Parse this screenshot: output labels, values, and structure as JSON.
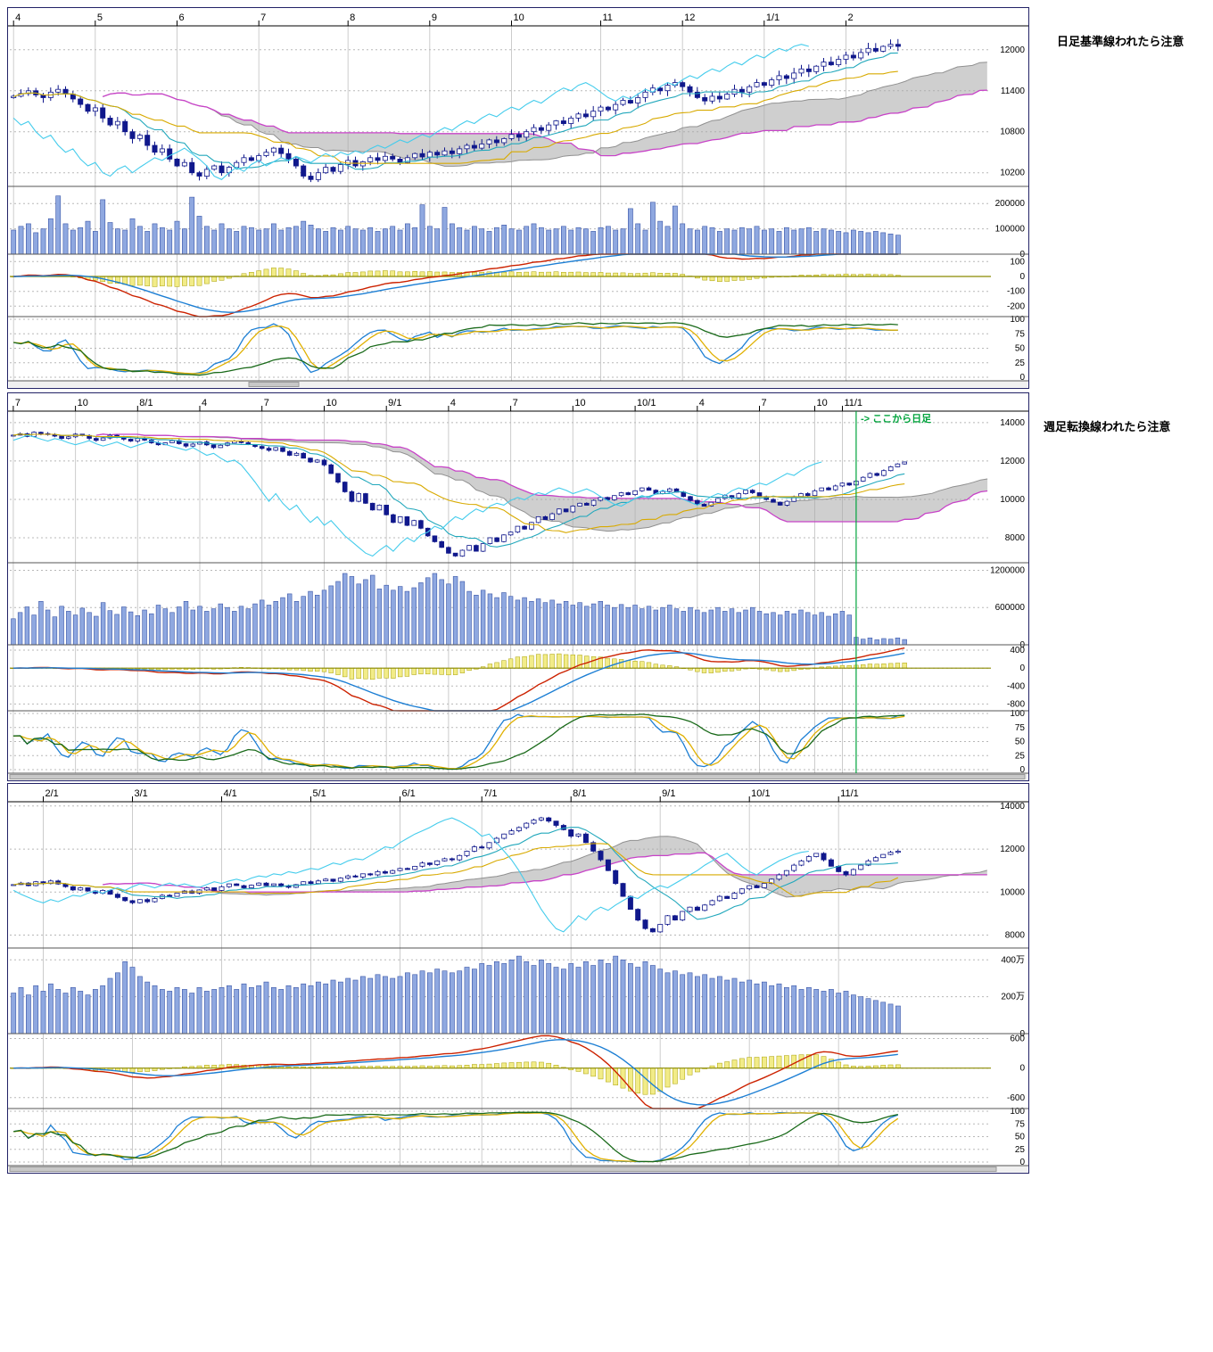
{
  "annotations": {
    "daily_note": "日足基準線われたら注意",
    "weekly_note": "週足転換線われたら注意"
  },
  "colors": {
    "candle": "#10188c",
    "candle_up_fill": "#ffffff",
    "volume_fill": "#8fa8e0",
    "volume_edge": "#3a56a8",
    "macd_line": "#cc2200",
    "signal_line": "#1d7fd4",
    "hist_fill": "#f2ec88",
    "hist_edge": "#a8a000",
    "zero_line": "#8a8a00",
    "stoch_k": "#1d7fd4",
    "stoch_d": "#e0b000",
    "stoch_slow": "#1a6a1a",
    "tenkan": "#22a8bc",
    "chikou": "#44ccec",
    "kijun": "#d8aa00",
    "span_a": "#909090",
    "span_b": "#c843c8",
    "cloud": "#a8a8a8",
    "grid": "#cccccc",
    "divider": "#00a33c"
  },
  "chart_data": [
    {
      "type": "candlestick",
      "id": "daily",
      "x_labels": [
        {
          "label": "4",
          "i": 0
        },
        {
          "label": "5",
          "i": 11
        },
        {
          "label": "6",
          "i": 22
        },
        {
          "label": "7",
          "i": 33
        },
        {
          "label": "8",
          "i": 45
        },
        {
          "label": "9",
          "i": 56
        },
        {
          "label": "10",
          "i": 67
        },
        {
          "label": "11",
          "i": 79
        },
        {
          "label": "12",
          "i": 90
        },
        {
          "label": "1/1",
          "i": 101
        },
        {
          "label": "2",
          "i": 112
        }
      ],
      "price_ticks": [
        12000,
        11400,
        10800,
        10200
      ],
      "price_range": [
        10000,
        12350
      ],
      "volume_ticks": [
        200000,
        100000,
        0
      ],
      "volume_labels": [
        "200000",
        "100000",
        "0"
      ],
      "volume_max": 250000,
      "macd_ticks": [
        100,
        0,
        -100,
        -200
      ],
      "macd_range": [
        -270,
        150
      ],
      "stoch_ticks": [
        100,
        75,
        50,
        25,
        0
      ],
      "closes": [
        11320,
        11360,
        11400,
        11340,
        11300,
        11380,
        11420,
        11350,
        11280,
        11200,
        11100,
        11150,
        11000,
        10900,
        10950,
        10800,
        10700,
        10750,
        10600,
        10500,
        10550,
        10400,
        10300,
        10350,
        10200,
        10150,
        10250,
        10300,
        10200,
        10280,
        10350,
        10420,
        10380,
        10450,
        10500,
        10560,
        10480,
        10400,
        10300,
        10150,
        10100,
        10200,
        10280,
        10220,
        10320,
        10380,
        10300,
        10360,
        10420,
        10380,
        10440,
        10400,
        10350,
        10420,
        10480,
        10430,
        10500,
        10460,
        10520,
        10480,
        10550,
        10600,
        10560,
        10620,
        10680,
        10640,
        10700,
        10760,
        10720,
        10800,
        10860,
        10820,
        10900,
        10960,
        10920,
        11000,
        11060,
        11020,
        11100,
        11160,
        11120,
        11200,
        11260,
        11220,
        11300,
        11380,
        11440,
        11400,
        11480,
        11520,
        11460,
        11380,
        11300,
        11250,
        11320,
        11280,
        11350,
        11420,
        11380,
        11460,
        11520,
        11480,
        11560,
        11620,
        11580,
        11660,
        11720,
        11680,
        11760,
        11820,
        11780,
        11860,
        11920,
        11880,
        11960,
        12020,
        11980,
        12050,
        12080,
        12050
      ],
      "volumes": [
        95000,
        110000,
        120000,
        85000,
        100000,
        140000,
        230000,
        120000,
        95000,
        105000,
        130000,
        90000,
        215000,
        125000,
        100000,
        95000,
        140000,
        110000,
        90000,
        120000,
        105000,
        95000,
        130000,
        100000,
        225000,
        150000,
        110000,
        95000,
        120000,
        100000,
        90000,
        110000,
        105000,
        95000,
        100000,
        120000,
        95000,
        105000,
        110000,
        130000,
        115000,
        100000,
        90000,
        105000,
        95000,
        110000,
        100000,
        95000,
        105000,
        90000,
        100000,
        110000,
        95000,
        120000,
        105000,
        195000,
        110000,
        100000,
        185000,
        120000,
        105000,
        95000,
        110000,
        100000,
        90000,
        105000,
        115000,
        100000,
        95000,
        110000,
        120000,
        105000,
        95000,
        100000,
        110000,
        95000,
        105000,
        100000,
        90000,
        105000,
        110000,
        95000,
        100000,
        180000,
        120000,
        95000,
        205000,
        130000,
        110000,
        190000,
        120000,
        100000,
        95000,
        110000,
        105000,
        90000,
        100000,
        95000,
        105000,
        100000,
        110000,
        95000,
        100000,
        90000,
        105000,
        95000,
        100000,
        105000,
        90000,
        100000,
        95000,
        90000,
        85000,
        95000,
        90000,
        85000,
        90000,
        85000,
        80000,
        75000
      ]
    },
    {
      "type": "candlestick",
      "id": "weekly",
      "x_labels": [
        {
          "label": "7",
          "i": 0
        },
        {
          "label": "10",
          "i": 9
        },
        {
          "label": "8/1",
          "i": 18
        },
        {
          "label": "4",
          "i": 27
        },
        {
          "label": "7",
          "i": 36
        },
        {
          "label": "10",
          "i": 45
        },
        {
          "label": "9/1",
          "i": 54
        },
        {
          "label": "4",
          "i": 63
        },
        {
          "label": "7",
          "i": 72
        },
        {
          "label": "10",
          "i": 81
        },
        {
          "label": "10/1",
          "i": 90
        },
        {
          "label": "4",
          "i": 99
        },
        {
          "label": "7",
          "i": 108
        },
        {
          "label": "10",
          "i": 116
        },
        {
          "label": "11/1",
          "i": 120
        }
      ],
      "price_ticks": [
        14000,
        12000,
        10000,
        8000
      ],
      "price_range": [
        6700,
        14600
      ],
      "volume_ticks": [
        1200000,
        600000,
        0
      ],
      "volume_labels": [
        "1200000",
        "600000",
        "0"
      ],
      "volume_max": 1250000,
      "macd_ticks": [
        400,
        0,
        -400,
        -800
      ],
      "macd_range": [
        -950,
        520
      ],
      "stoch_ticks": [
        100,
        75,
        50,
        25,
        0
      ],
      "divider": {
        "i": 122,
        "label": "-> ここから日足"
      },
      "closes": [
        13350,
        13420,
        13280,
        13500,
        13430,
        13380,
        13300,
        13180,
        13260,
        13400,
        13330,
        13180,
        13080,
        13200,
        13340,
        13260,
        13140,
        13040,
        13170,
        13090,
        12950,
        12850,
        12950,
        13060,
        12900,
        12780,
        12880,
        12990,
        12840,
        12700,
        12820,
        12940,
        13050,
        12960,
        12860,
        12760,
        12660,
        12560,
        12700,
        12500,
        12300,
        12400,
        12150,
        11950,
        12050,
        11800,
        11350,
        10900,
        10400,
        9900,
        10300,
        9800,
        9450,
        9700,
        9200,
        8800,
        9100,
        8650,
        8900,
        8500,
        8100,
        7800,
        7500,
        7200,
        7050,
        7350,
        7600,
        7300,
        7700,
        8000,
        7800,
        8150,
        8300,
        8600,
        8450,
        8800,
        9100,
        8950,
        9250,
        9500,
        9350,
        9650,
        9800,
        9700,
        9950,
        10100,
        9980,
        10200,
        10350,
        10250,
        10450,
        10600,
        10480,
        10300,
        10420,
        10550,
        10380,
        10150,
        9950,
        9750,
        9650,
        9850,
        10050,
        10200,
        10080,
        10300,
        10480,
        10350,
        10150,
        10000,
        9850,
        9700,
        9900,
        10150,
        10300,
        10200,
        10450,
        10600,
        10500,
        10700,
        10850,
        10750,
        10950,
        11150,
        11350,
        11250,
        11500,
        11700,
        11850,
        11950
      ],
      "volumes": [
        420000,
        520000,
        610000,
        480000,
        700000,
        560000,
        450000,
        620000,
        540000,
        480000,
        590000,
        520000,
        460000,
        680000,
        550000,
        490000,
        610000,
        530000,
        470000,
        560000,
        500000,
        640000,
        580000,
        520000,
        610000,
        700000,
        560000,
        620000,
        540000,
        580000,
        660000,
        600000,
        540000,
        620000,
        580000,
        660000,
        720000,
        640000,
        700000,
        760000,
        820000,
        700000,
        780000,
        860000,
        800000,
        880000,
        950000,
        1020000,
        1150000,
        1100000,
        980000,
        1050000,
        1120000,
        900000,
        960000,
        880000,
        940000,
        860000,
        920000,
        1000000,
        1080000,
        1150000,
        1050000,
        980000,
        1100000,
        1020000,
        860000,
        800000,
        880000,
        820000,
        760000,
        840000,
        780000,
        720000,
        760000,
        700000,
        740000,
        680000,
        720000,
        660000,
        700000,
        640000,
        680000,
        620000,
        660000,
        700000,
        640000,
        600000,
        650000,
        600000,
        640000,
        580000,
        620000,
        560000,
        600000,
        640000,
        580000,
        540000,
        600000,
        560000,
        520000,
        560000,
        600000,
        540000,
        580000,
        520000,
        560000,
        600000,
        540000,
        500000,
        520000,
        480000,
        540000,
        500000,
        560000,
        520000,
        480000,
        520000,
        460000,
        500000,
        540000,
        480000,
        120000,
        90000,
        110000,
        80000,
        100000,
        90000,
        110000,
        85000
      ]
    },
    {
      "type": "candlestick",
      "id": "longspan",
      "x_labels": [
        {
          "label": "2/1",
          "i": 4
        },
        {
          "label": "3/1",
          "i": 16
        },
        {
          "label": "4/1",
          "i": 28
        },
        {
          "label": "5/1",
          "i": 40
        },
        {
          "label": "6/1",
          "i": 52
        },
        {
          "label": "7/1",
          "i": 63
        },
        {
          "label": "8/1",
          "i": 75
        },
        {
          "label": "9/1",
          "i": 87
        },
        {
          "label": "10/1",
          "i": 99
        },
        {
          "label": "11/1",
          "i": 111
        }
      ],
      "price_ticks": [
        14000,
        12000,
        10000,
        8000
      ],
      "price_range": [
        7400,
        14200
      ],
      "volume_ticks": [
        400,
        200,
        0
      ],
      "volume_labels": [
        "400万",
        "200万",
        "0"
      ],
      "volume_max": 440,
      "macd_ticks": [
        600,
        0,
        -600
      ],
      "macd_range": [
        -820,
        700
      ],
      "stoch_ticks": [
        100,
        75,
        50,
        25,
        0
      ],
      "closes": [
        10350,
        10420,
        10300,
        10480,
        10400,
        10520,
        10380,
        10250,
        10100,
        10200,
        10050,
        9950,
        10080,
        9900,
        9750,
        9600,
        9500,
        9650,
        9550,
        9700,
        9850,
        9800,
        9950,
        10050,
        9950,
        10100,
        10200,
        10080,
        10250,
        10380,
        10300,
        10200,
        10320,
        10420,
        10300,
        10380,
        10280,
        10220,
        10350,
        10480,
        10400,
        10520,
        10600,
        10500,
        10650,
        10750,
        10700,
        10850,
        10800,
        10950,
        10880,
        11000,
        11100,
        11050,
        11200,
        11350,
        11280,
        11450,
        11550,
        11500,
        11700,
        11900,
        12100,
        12050,
        12300,
        12500,
        12700,
        12850,
        13000,
        13200,
        13350,
        13450,
        13300,
        13100,
        12900,
        12600,
        12700,
        12300,
        11900,
        11500,
        11000,
        10400,
        9800,
        9200,
        8700,
        8300,
        8150,
        8500,
        8900,
        8700,
        9100,
        9300,
        9150,
        9400,
        9600,
        9800,
        9700,
        9950,
        10150,
        10300,
        10200,
        10400,
        10600,
        10800,
        11000,
        11250,
        11450,
        11650,
        11800,
        11500,
        11200,
        10950,
        10800,
        11050,
        11250,
        11450,
        11600,
        11750,
        11850,
        11900
      ],
      "volumes": [
        220,
        250,
        210,
        260,
        230,
        270,
        240,
        220,
        250,
        230,
        210,
        240,
        260,
        300,
        330,
        390,
        360,
        310,
        280,
        260,
        240,
        230,
        250,
        240,
        220,
        250,
        230,
        240,
        250,
        260,
        240,
        270,
        250,
        260,
        280,
        250,
        240,
        260,
        250,
        270,
        260,
        280,
        270,
        290,
        280,
        300,
        290,
        310,
        300,
        320,
        310,
        300,
        310,
        330,
        320,
        340,
        330,
        350,
        340,
        330,
        340,
        360,
        350,
        380,
        370,
        390,
        380,
        400,
        420,
        390,
        370,
        400,
        380,
        360,
        350,
        380,
        360,
        390,
        370,
        400,
        380,
        420,
        400,
        380,
        360,
        390,
        370,
        350,
        330,
        340,
        320,
        330,
        310,
        320,
        300,
        310,
        290,
        300,
        280,
        290,
        270,
        280,
        260,
        270,
        250,
        260,
        240,
        250,
        240,
        230,
        240,
        220,
        230,
        210,
        200,
        190,
        180,
        170,
        160,
        150
      ]
    }
  ]
}
